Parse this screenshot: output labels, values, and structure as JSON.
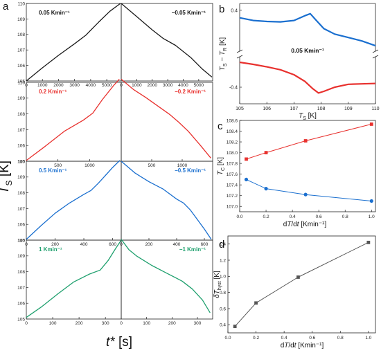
{
  "panel_labels": {
    "a": "a",
    "b": "b",
    "c": "c",
    "d": "d"
  },
  "panel_a": {
    "ylabel_main": "T",
    "ylabel_sub": "S",
    "ylabel_unit": " [K]",
    "xlabel_main": "t*",
    "xlabel_unit": " [s]"
  },
  "chart_data": [
    {
      "type": "line",
      "panel": "a",
      "row": 1,
      "side": "heating",
      "annotation": "0.05 Kmin⁻¹",
      "color": "#1a1a1a",
      "x": [
        0,
        1000,
        2000,
        3000,
        3700,
        4500,
        5200,
        5850
      ],
      "y": [
        105.0,
        105.85,
        106.65,
        107.4,
        107.95,
        108.8,
        109.5,
        110.0
      ],
      "xlim": [
        0,
        5900
      ],
      "ylim": [
        105,
        110
      ],
      "xticks": [
        0,
        1000,
        2000,
        3000,
        4000,
        5000
      ],
      "yticks": [
        105,
        106,
        107,
        108,
        109,
        110
      ]
    },
    {
      "type": "line",
      "panel": "a",
      "row": 1,
      "side": "cooling",
      "annotation": "−0.05 Kmin⁻¹",
      "color": "#1a1a1a",
      "x": [
        0,
        1000,
        2000,
        2700,
        3500,
        4500,
        5200,
        5850
      ],
      "y": [
        110.0,
        109.15,
        108.3,
        107.75,
        107.3,
        106.5,
        105.8,
        105.25
      ],
      "xlim": [
        0,
        5900
      ],
      "ylim": [
        105,
        110
      ],
      "xticks": [
        0,
        1000,
        2000,
        3000,
        4000,
        5000
      ],
      "yticks": []
    },
    {
      "type": "line",
      "panel": "a",
      "row": 2,
      "side": "heating",
      "annotation": "0.2 Kmin⁻¹",
      "color": "#e8312e",
      "x": [
        0,
        300,
        600,
        900,
        1050,
        1200,
        1380,
        1470
      ],
      "y": [
        105.05,
        105.95,
        106.9,
        107.6,
        108.05,
        108.9,
        109.8,
        110.2
      ],
      "xlim": [
        0,
        1500
      ],
      "ylim": [
        105,
        110
      ],
      "xticks": [
        500,
        1000
      ],
      "yticks": [
        105,
        106,
        107,
        108,
        109,
        110
      ]
    },
    {
      "type": "line",
      "panel": "a",
      "row": 2,
      "side": "cooling",
      "annotation": "−0.2 Kmin⁻¹",
      "color": "#e8312e",
      "x": [
        0,
        200,
        400,
        600,
        800,
        950,
        1100,
        1300,
        1470
      ],
      "y": [
        110.2,
        109.55,
        109.05,
        108.5,
        107.95,
        107.45,
        106.9,
        106.0,
        105.2
      ],
      "xlim": [
        0,
        1500
      ],
      "ylim": [
        105,
        110
      ],
      "xticks": [
        500,
        1000
      ],
      "yticks": []
    },
    {
      "type": "line",
      "panel": "a",
      "row": 3,
      "side": "heating",
      "annotation": "0.5 Kmin⁻¹",
      "color": "#1a6fcf",
      "x": [
        0,
        100,
        200,
        300,
        400,
        450,
        500,
        550,
        600,
        650
      ],
      "y": [
        105.05,
        105.9,
        106.7,
        107.35,
        107.9,
        108.15,
        108.6,
        109.1,
        109.6,
        110.05
      ],
      "xlim": [
        0,
        660
      ],
      "ylim": [
        105,
        110
      ],
      "xticks": [
        0,
        200,
        400,
        600
      ],
      "yticks": [
        105,
        106,
        107,
        108,
        109,
        110
      ]
    },
    {
      "type": "line",
      "panel": "a",
      "row": 3,
      "side": "cooling",
      "annotation": "−0.5 Kmin⁻¹",
      "color": "#1a6fcf",
      "x": [
        0,
        100,
        200,
        300,
        400,
        450,
        500,
        550,
        600,
        650
      ],
      "y": [
        110.0,
        109.25,
        108.7,
        108.25,
        107.6,
        107.35,
        106.9,
        106.3,
        105.7,
        105.05
      ],
      "xlim": [
        0,
        660
      ],
      "ylim": [
        105,
        110
      ],
      "xticks": [
        0,
        200,
        400,
        600
      ],
      "yticks": []
    },
    {
      "type": "line",
      "panel": "a",
      "row": 4,
      "side": "heating",
      "annotation": "1 Kmin⁻¹",
      "color": "#1fa06e",
      "x": [
        0,
        60,
        120,
        180,
        240,
        280,
        310,
        340,
        360
      ],
      "y": [
        105.1,
        105.8,
        106.6,
        107.35,
        107.85,
        108.1,
        108.7,
        109.5,
        110.0
      ],
      "xlim": [
        0,
        360
      ],
      "ylim": [
        105,
        110
      ],
      "xticks": [
        0,
        100,
        200,
        300
      ],
      "yticks": [
        105,
        106,
        107,
        108,
        109,
        110
      ]
    },
    {
      "type": "line",
      "panel": "a",
      "row": 4,
      "side": "cooling",
      "annotation": "−1 Kmin⁻¹",
      "color": "#1fa06e",
      "x": [
        0,
        30,
        60,
        120,
        180,
        240,
        280,
        320,
        350
      ],
      "y": [
        110.05,
        109.4,
        109.0,
        108.4,
        107.9,
        107.4,
        106.9,
        106.2,
        105.4
      ],
      "xlim": [
        0,
        360
      ],
      "ylim": [
        105,
        110
      ],
      "xticks": [
        0,
        100,
        200,
        300
      ],
      "yticks": []
    },
    {
      "type": "line",
      "panel": "b",
      "annotation": "0.05 Kmin⁻¹",
      "xlabel_main": "T",
      "xlabel_sub": "S",
      "xlabel_unit": " [K]",
      "ylabel_main": "T",
      "ylabel_sub1": "S",
      "ylabel_mid": " − T",
      "ylabel_sub2": "R",
      "ylabel_unit": " [K]",
      "xlim": [
        105,
        110
      ],
      "xticks": [
        105,
        106,
        107,
        108,
        109,
        110
      ],
      "yticks": [
        0.4,
        -0.4
      ],
      "ylim_upper": [
        0.12,
        0.45
      ],
      "ylim_lower": [
        -0.6,
        -0.05
      ],
      "series": [
        {
          "color": "#1a6fcf",
          "x": [
            105.0,
            105.5,
            106.0,
            106.5,
            107.0,
            107.4,
            107.6,
            107.8,
            108.1,
            108.5,
            109.0,
            109.5,
            110.0
          ],
          "y": [
            0.345,
            0.325,
            0.318,
            0.315,
            0.325,
            0.36,
            0.375,
            0.33,
            0.265,
            0.225,
            0.2,
            0.175,
            0.14
          ]
        },
        {
          "color": "#e8312e",
          "x": [
            105.0,
            105.5,
            106.0,
            106.5,
            107.0,
            107.4,
            107.7,
            107.9,
            108.1,
            108.5,
            109.0,
            109.5,
            110.0
          ],
          "y": [
            -0.1,
            -0.125,
            -0.155,
            -0.19,
            -0.25,
            -0.33,
            -0.42,
            -0.47,
            -0.45,
            -0.4,
            -0.365,
            -0.36,
            -0.355
          ]
        }
      ]
    },
    {
      "type": "line",
      "panel": "c",
      "xlabel_main": "dT/dt",
      "xlabel_unit": " [Kmin⁻¹]",
      "ylabel_main": "T",
      "ylabel_sub": "C",
      "ylabel_unit": " [K]",
      "xlim": [
        0,
        1.03
      ],
      "ylim": [
        106.9,
        108.6
      ],
      "xticks": [
        0.0,
        0.2,
        0.4,
        0.6,
        0.8,
        1.0
      ],
      "yticks": [
        107.0,
        107.2,
        107.4,
        107.6,
        107.8,
        108.0,
        108.2,
        108.4,
        108.6
      ],
      "series": [
        {
          "color": "#e8312e",
          "marker": "square",
          "x": [
            0.05,
            0.2,
            0.5,
            1.0
          ],
          "y": [
            107.88,
            108.0,
            108.22,
            108.53
          ]
        },
        {
          "color": "#1a6fcf",
          "marker": "circle",
          "x": [
            0.05,
            0.2,
            0.5,
            1.0
          ],
          "y": [
            107.5,
            107.33,
            107.22,
            107.1
          ]
        }
      ]
    },
    {
      "type": "line",
      "panel": "d",
      "xlabel_main": "dT/dt",
      "xlabel_unit": " [Kmin⁻¹]",
      "ylabel_main": "δT",
      "ylabel_sub": "hyst",
      "ylabel_unit": " [K]",
      "xlim": [
        0,
        1.05
      ],
      "ylim": [
        0.3,
        1.5
      ],
      "xticks": [
        0.0,
        0.2,
        0.4,
        0.6,
        0.8,
        1.0
      ],
      "yticks": [
        0.4,
        0.6,
        0.8,
        1.0,
        1.2,
        1.4
      ],
      "series": [
        {
          "color": "#555555",
          "marker": "square",
          "x": [
            0.05,
            0.2,
            0.5,
            1.0
          ],
          "y": [
            0.38,
            0.67,
            0.99,
            1.42
          ]
        }
      ]
    }
  ]
}
